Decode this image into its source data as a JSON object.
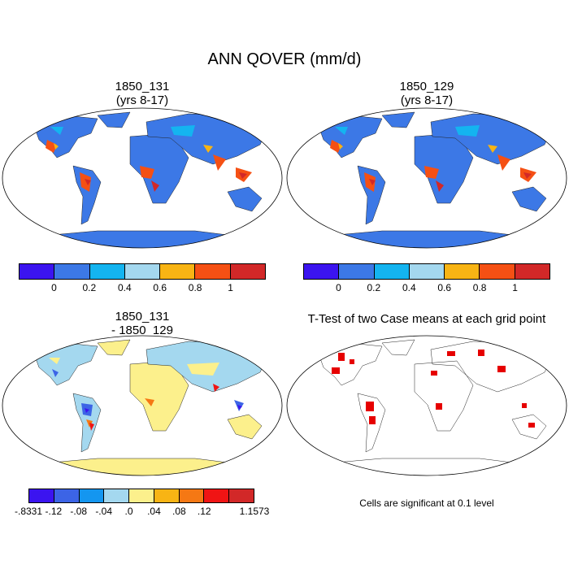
{
  "main_title": "ANN QOVER (mm/d)",
  "panels": {
    "p1": {
      "title1": "1850_131",
      "title2": "(yrs 8-17)"
    },
    "p2": {
      "title1": "1850_129",
      "title2": "(yrs 8-17)"
    },
    "p3": {
      "title1": "1850_131",
      "title2": "- 1850_129"
    },
    "p4": {
      "title1": "T-Test of two Case means at each grid point"
    }
  },
  "colorbar_top": {
    "colors": [
      "#3b14f0",
      "#3c78e6",
      "#14b4f0",
      "#a4d8ef",
      "#f8b414",
      "#f55014",
      "#d22828"
    ],
    "labels": [
      "0",
      "0.2",
      "0.4",
      "0.6",
      "0.8",
      "1"
    ]
  },
  "colorbar_diff": {
    "colors": [
      "#3b14f0",
      "#3c64e6",
      "#1496f0",
      "#a4d8ef",
      "#fcf08c",
      "#f8b414",
      "#f57814",
      "#f01414",
      "#d22828"
    ],
    "labels": [
      "-.8331",
      "-.12",
      "-.08",
      "-.04",
      ".0",
      ".04",
      ".08",
      ".12",
      "1.1573"
    ]
  },
  "ttest_note": "Cells are significant at 0.1 level"
}
